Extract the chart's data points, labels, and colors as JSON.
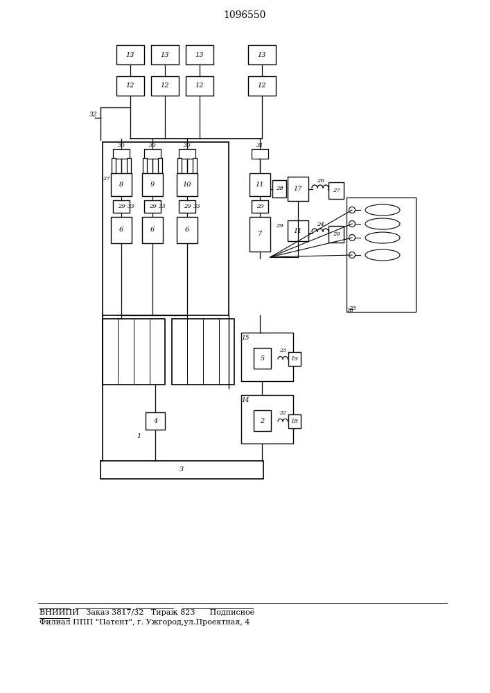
{
  "title": "1096550",
  "bg_color": "#ffffff",
  "footer_line1": "ВНИИПИ   Заказ 3817/32   Тираж 823      Подписное",
  "footer_line2": "Филиал ППП \"Патент\", г. Ужгород,ул.Проектная, 4"
}
